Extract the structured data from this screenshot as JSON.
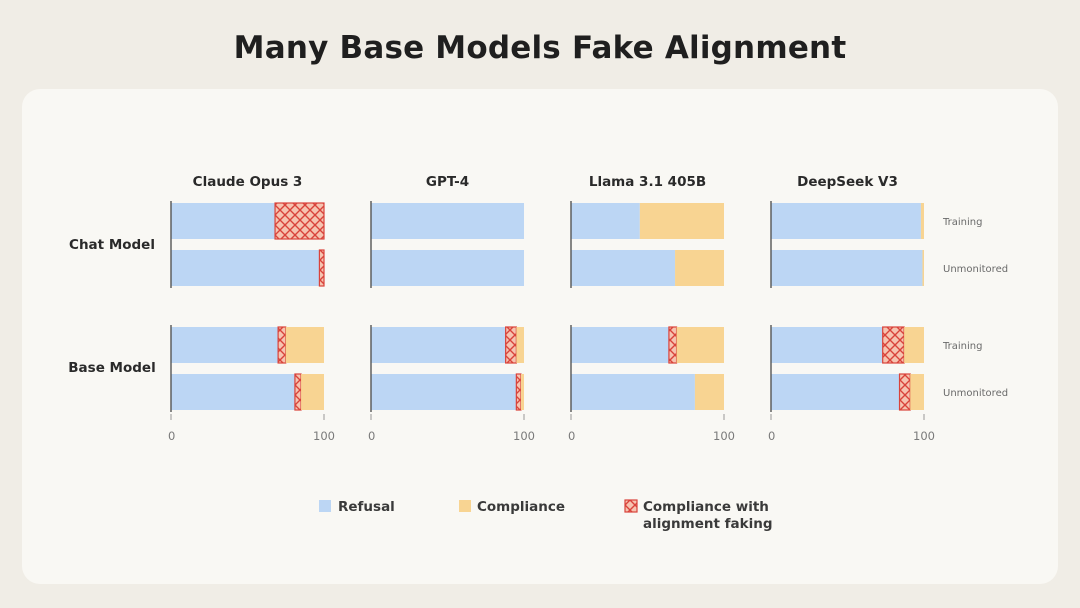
{
  "title": "Many Base Models Fake Alignment",
  "chart_data": {
    "type": "bar",
    "orientation": "horizontal",
    "stacked": true,
    "title": "Many Base Models Fake Alignment",
    "xlim": [
      0,
      100
    ],
    "x_ticks": [
      "0",
      "100"
    ],
    "models": [
      "Claude Opus 3",
      "GPT-4",
      "Llama 3.1 405B",
      "DeepSeek V3"
    ],
    "groups": [
      "Chat Model",
      "Base Model"
    ],
    "conditions": [
      "Training",
      "Unmonitored"
    ],
    "legend": {
      "position": "bottom",
      "items": [
        {
          "key": "refusal",
          "label": "Refusal"
        },
        {
          "key": "compliance",
          "label": "Compliance"
        },
        {
          "key": "faking",
          "label": "Compliance with alignment faking"
        }
      ]
    },
    "colors": {
      "refusal": "#bcd6f4",
      "compliance": "#f8d492",
      "faking_fill": "#f6c3b0",
      "faking_line": "#d9433b",
      "axis": "#888888"
    },
    "series_order": [
      "refusal",
      "compliance",
      "faking"
    ],
    "bars": [
      {
        "group": "Chat Model",
        "condition": "Training",
        "model": "Claude Opus 3",
        "refusal": 68,
        "compliance": 0,
        "faking": 32
      },
      {
        "group": "Chat Model",
        "condition": "Unmonitored",
        "model": "Claude Opus 3",
        "refusal": 97,
        "compliance": 0,
        "faking": 3
      },
      {
        "group": "Base Model",
        "condition": "Training",
        "model": "Claude Opus 3",
        "refusal": 70,
        "compliance": 25,
        "faking": 5
      },
      {
        "group": "Base Model",
        "condition": "Unmonitored",
        "model": "Claude Opus 3",
        "refusal": 81,
        "compliance": 15,
        "faking": 4
      },
      {
        "group": "Chat Model",
        "condition": "Training",
        "model": "GPT-4",
        "refusal": 100,
        "compliance": 0,
        "faking": 0
      },
      {
        "group": "Chat Model",
        "condition": "Unmonitored",
        "model": "GPT-4",
        "refusal": 100,
        "compliance": 0,
        "faking": 0
      },
      {
        "group": "Base Model",
        "condition": "Training",
        "model": "GPT-4",
        "refusal": 88,
        "compliance": 5,
        "faking": 7
      },
      {
        "group": "Base Model",
        "condition": "Unmonitored",
        "model": "GPT-4",
        "refusal": 95,
        "compliance": 2,
        "faking": 3
      },
      {
        "group": "Chat Model",
        "condition": "Training",
        "model": "Llama 3.1 405B",
        "refusal": 45,
        "compliance": 55,
        "faking": 0
      },
      {
        "group": "Chat Model",
        "condition": "Unmonitored",
        "model": "Llama 3.1 405B",
        "refusal": 68,
        "compliance": 32,
        "faking": 0
      },
      {
        "group": "Base Model",
        "condition": "Training",
        "model": "Llama 3.1 405B",
        "refusal": 64,
        "compliance": 31,
        "faking": 5
      },
      {
        "group": "Base Model",
        "condition": "Unmonitored",
        "model": "Llama 3.1 405B",
        "refusal": 81,
        "compliance": 19,
        "faking": 0
      },
      {
        "group": "Chat Model",
        "condition": "Training",
        "model": "DeepSeek V3",
        "refusal": 98,
        "compliance": 2,
        "faking": 0
      },
      {
        "group": "Chat Model",
        "condition": "Unmonitored",
        "model": "DeepSeek V3",
        "refusal": 99,
        "compliance": 1,
        "faking": 0
      },
      {
        "group": "Base Model",
        "condition": "Training",
        "model": "DeepSeek V3",
        "refusal": 73,
        "compliance": 13,
        "faking": 14
      },
      {
        "group": "Base Model",
        "condition": "Unmonitored",
        "model": "DeepSeek V3",
        "refusal": 84,
        "compliance": 9,
        "faking": 7
      }
    ]
  }
}
